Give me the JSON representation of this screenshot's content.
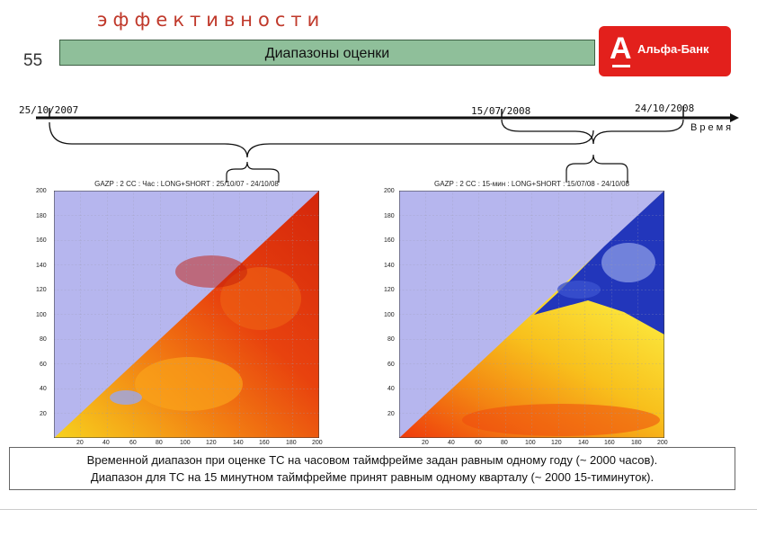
{
  "header": {
    "top_title": "эффективности",
    "slide_number": "55",
    "band_title": "Диапазоны оценки"
  },
  "logo": {
    "letter": "А",
    "text": "Альфа-Банк",
    "color": "#e3201c"
  },
  "timeline": {
    "dates": [
      "25/10/2007",
      "15/07/2008",
      "24/10/2008"
    ],
    "axis_label": "Время"
  },
  "plots": [
    {
      "caption": "GAZP : 2 CC : Час : LONG+SHORT : 25/10/07 - 24/10/08",
      "x_ticks": [
        "20",
        "40",
        "60",
        "80",
        "100",
        "120",
        "140",
        "160",
        "180",
        "200"
      ],
      "y_ticks": [
        "200",
        "180",
        "160",
        "140",
        "120",
        "100",
        "80",
        "60",
        "40",
        "20"
      ]
    },
    {
      "caption": "GAZP : 2 CC : 15-мин : LONG+SHORT : 15/07/08 - 24/10/08",
      "x_ticks": [
        "20",
        "40",
        "60",
        "80",
        "100",
        "120",
        "140",
        "160",
        "180",
        "200"
      ],
      "y_ticks": [
        "200",
        "180",
        "160",
        "140",
        "120",
        "100",
        "80",
        "60",
        "40",
        "20"
      ]
    }
  ],
  "caption": {
    "line1": "Временной диапазон при оценке ТС на часовом таймфрейме задан равным одному году (~ 2000 часов).",
    "line2": "Диапазон для ТС на 15 минутном таймфрейме принят равным одному кварталу (~ 2000 15-тиминуток)."
  }
}
